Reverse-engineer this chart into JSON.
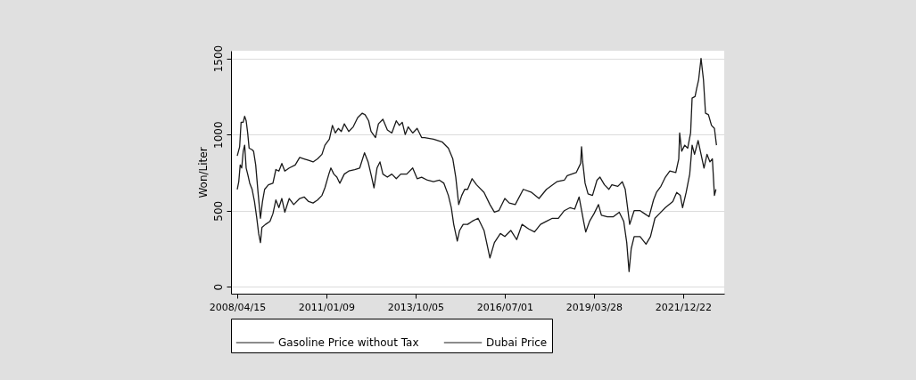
{
  "chart_data": {
    "type": "line",
    "ylabel": "Won/Liter",
    "legend": "bottom",
    "grid": "y",
    "line_style": "solid",
    "marker": "none",
    "xlim": [
      "2008-02-05",
      "2023-03-28"
    ],
    "ylim": [
      -45,
      1550
    ],
    "xticks": [
      {
        "value": "2008-04-15",
        "label": "2008/04/15"
      },
      {
        "value": "2011-01-09",
        "label": "2011/01/09"
      },
      {
        "value": "2013-10-05",
        "label": "2013/10/05"
      },
      {
        "value": "2016-07-01",
        "label": "2016/07/01"
      },
      {
        "value": "2019-03-28",
        "label": "2019/03/28"
      },
      {
        "value": "2021-12-22",
        "label": "2021/12/22"
      }
    ],
    "yticks": [
      0,
      500,
      1000,
      1500
    ],
    "series": [
      {
        "name": "Gasoline Price without Tax",
        "color": "#1a1a1a",
        "x": [
          "2008-04-15",
          "2008-05-12",
          "2008-05-28",
          "2008-06-21",
          "2008-07-07",
          "2008-07-24",
          "2008-08-10",
          "2008-08-26",
          "2008-09-29",
          "2008-10-15",
          "2008-11-08",
          "2008-12-04",
          "2008-12-31",
          "2009-01-23",
          "2009-02-16",
          "2009-03-31",
          "2009-05-20",
          "2009-06-22",
          "2009-07-26",
          "2009-08-28",
          "2009-09-30",
          "2009-11-19",
          "2010-01-25",
          "2010-03-16",
          "2010-05-05",
          "2010-06-24",
          "2010-08-13",
          "2010-10-02",
          "2010-11-21",
          "2010-12-24",
          "2011-02-12",
          "2011-03-18",
          "2011-04-20",
          "2011-05-23",
          "2011-06-26",
          "2011-07-29",
          "2011-09-17",
          "2011-11-06",
          "2011-12-26",
          "2012-02-14",
          "2012-03-18",
          "2012-04-27",
          "2012-05-24",
          "2012-07-13",
          "2012-08-15",
          "2012-10-04",
          "2012-11-23",
          "2013-01-12",
          "2013-03-03",
          "2013-04-06",
          "2013-05-09",
          "2013-06-11",
          "2013-07-15",
          "2013-09-03",
          "2013-10-23",
          "2013-12-12",
          "2014-01-14",
          "2014-04-24",
          "2014-08-02",
          "2014-10-08",
          "2014-11-27",
          "2014-12-30",
          "2015-02-01",
          "2015-03-07",
          "2015-04-09",
          "2015-05-12",
          "2015-07-01",
          "2015-08-20",
          "2015-11-12",
          "2016-01-17",
          "2016-03-07",
          "2016-04-26",
          "2016-07-02",
          "2016-08-21",
          "2016-10-27",
          "2017-01-25",
          "2017-04-28",
          "2017-07-20",
          "2017-10-12",
          "2018-02-05",
          "2018-04-30",
          "2018-06-02",
          "2018-09-10",
          "2018-10-30",
          "2018-11-09",
          "2018-11-22",
          "2018-12-19",
          "2019-01-21",
          "2019-03-12",
          "2019-05-01",
          "2019-06-04",
          "2019-07-24",
          "2019-09-12",
          "2019-10-15",
          "2019-12-21",
          "2020-02-09",
          "2020-03-13",
          "2020-05-02",
          "2020-06-21",
          "2020-08-27",
          "2020-10-16",
          "2020-12-05",
          "2021-01-24",
          "2021-02-26",
          "2021-04-17",
          "2021-06-06",
          "2021-07-26",
          "2021-10-01",
          "2021-11-03",
          "2021-11-13",
          "2021-12-06",
          "2022-01-09",
          "2022-02-11",
          "2022-03-16",
          "2022-04-02",
          "2022-05-05",
          "2022-05-22",
          "2022-06-14",
          "2022-07-11",
          "2022-08-07",
          "2022-08-30",
          "2022-10-02",
          "2022-11-05",
          "2022-12-08",
          "2022-12-31"
        ],
        "values": [
          860,
          920,
          1080,
          1080,
          1120,
          1090,
          1010,
          910,
          900,
          890,
          800,
          620,
          450,
          560,
          640,
          670,
          680,
          770,
          760,
          810,
          760,
          780,
          800,
          850,
          840,
          830,
          820,
          840,
          870,
          930,
          970,
          1060,
          1010,
          1040,
          1020,
          1070,
          1020,
          1050,
          1110,
          1140,
          1130,
          1090,
          1020,
          980,
          1070,
          1100,
          1030,
          1010,
          1090,
          1060,
          1080,
          1000,
          1050,
          1010,
          1040,
          980,
          980,
          970,
          950,
          910,
          840,
          720,
          540,
          600,
          640,
          640,
          710,
          670,
          620,
          540,
          490,
          500,
          580,
          550,
          540,
          640,
          620,
          580,
          640,
          690,
          700,
          730,
          750,
          810,
          920,
          820,
          680,
          610,
          600,
          700,
          720,
          670,
          640,
          670,
          660,
          690,
          640,
          410,
          500,
          500,
          480,
          460,
          570,
          620,
          660,
          720,
          760,
          750,
          840,
          1010,
          890,
          930,
          910,
          1010,
          1240,
          1250,
          1300,
          1360,
          1500,
          1360,
          1140,
          1130,
          1060,
          1040,
          930
        ]
      },
      {
        "name": "Dubai Price",
        "color": "#1a1a1a",
        "x": [
          "2008-04-15",
          "2008-05-02",
          "2008-05-18",
          "2008-06-04",
          "2008-06-21",
          "2008-07-07",
          "2008-07-24",
          "2008-08-10",
          "2008-09-02",
          "2008-09-29",
          "2008-10-25",
          "2008-11-18",
          "2008-12-11",
          "2008-12-31",
          "2009-01-17",
          "2009-02-26",
          "2009-04-17",
          "2009-05-20",
          "2009-06-22",
          "2009-07-26",
          "2009-08-28",
          "2009-09-30",
          "2009-11-19",
          "2010-01-08",
          "2010-03-16",
          "2010-05-05",
          "2010-06-24",
          "2010-08-13",
          "2010-10-02",
          "2010-11-21",
          "2010-12-24",
          "2011-02-06",
          "2011-03-01",
          "2011-04-03",
          "2011-05-07",
          "2011-06-09",
          "2011-07-29",
          "2011-09-17",
          "2011-11-23",
          "2012-01-18",
          "2012-03-12",
          "2012-04-21",
          "2012-05-31",
          "2012-06-26",
          "2012-07-30",
          "2012-09-01",
          "2012-10-04",
          "2012-11-23",
          "2013-01-12",
          "2013-03-03",
          "2013-04-22",
          "2013-06-28",
          "2013-09-03",
          "2013-10-23",
          "2013-12-12",
          "2014-02-16",
          "2014-04-24",
          "2014-06-30",
          "2014-08-19",
          "2014-10-08",
          "2014-11-10",
          "2014-12-07",
          "2015-01-16",
          "2015-02-11",
          "2015-03-23",
          "2015-05-12",
          "2015-07-01",
          "2015-09-06",
          "2015-11-12",
          "2016-01-17",
          "2016-03-07",
          "2016-05-13",
          "2016-07-02",
          "2016-09-07",
          "2016-11-12",
          "2017-01-11",
          "2017-03-26",
          "2017-05-31",
          "2017-08-06",
          "2017-10-12",
          "2017-12-17",
          "2018-02-22",
          "2018-04-30",
          "2018-07-05",
          "2018-08-24",
          "2018-10-13",
          "2018-12-02",
          "2018-12-26",
          "2019-02-07",
          "2019-03-29",
          "2019-05-18",
          "2019-06-20",
          "2019-08-26",
          "2019-11-01",
          "2020-01-06",
          "2020-02-25",
          "2020-03-30",
          "2020-04-25",
          "2020-05-19",
          "2020-06-21",
          "2020-08-27",
          "2020-11-01",
          "2020-12-21",
          "2021-02-09",
          "2021-03-31",
          "2021-06-06",
          "2021-08-28",
          "2021-10-11",
          "2021-11-20",
          "2021-12-16",
          "2022-01-25",
          "2022-03-06",
          "2022-04-02",
          "2022-04-29",
          "2022-06-08",
          "2022-07-11",
          "2022-08-13",
          "2022-09-16",
          "2022-10-19",
          "2022-11-15",
          "2022-12-08",
          "2022-12-25"
        ],
        "values": [
          640,
          690,
          800,
          780,
          890,
          930,
          780,
          740,
          680,
          640,
          560,
          460,
          350,
          290,
          390,
          410,
          430,
          480,
          570,
          520,
          580,
          490,
          580,
          540,
          580,
          590,
          560,
          550,
          570,
          600,
          650,
          740,
          780,
          740,
          720,
          680,
          740,
          760,
          770,
          780,
          880,
          820,
          720,
          650,
          780,
          820,
          740,
          720,
          740,
          710,
          740,
          740,
          780,
          710,
          720,
          700,
          690,
          700,
          680,
          600,
          520,
          410,
          300,
          370,
          410,
          410,
          430,
          450,
          370,
          190,
          290,
          350,
          330,
          370,
          310,
          410,
          380,
          360,
          410,
          430,
          450,
          450,
          500,
          520,
          510,
          590,
          430,
          360,
          430,
          480,
          540,
          470,
          460,
          460,
          490,
          430,
          290,
          100,
          250,
          330,
          330,
          280,
          330,
          450,
          480,
          520,
          560,
          620,
          600,
          520,
          620,
          740,
          930,
          870,
          960,
          870,
          780,
          870,
          820,
          840,
          600,
          640
        ]
      }
    ]
  }
}
